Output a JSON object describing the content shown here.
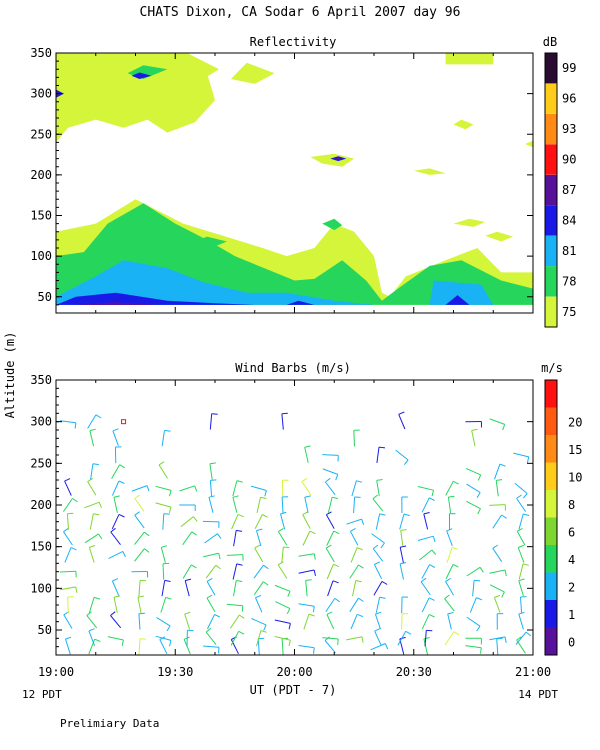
{
  "figure": {
    "title": "CHATS Dixon, CA  Sodar   6 April 2007  day  96",
    "ylabel": "Altitude (m)",
    "xlabel": "UT  (PDT - 7)",
    "left_time_note": "12 PDT",
    "right_time_note": "14 PDT",
    "footer": "Prelimiary Data"
  },
  "chart_data": [
    {
      "type": "heatmap",
      "title": "Reflectivity",
      "colorbar_unit": "dB",
      "x_ticks": [
        "19:00",
        "19:30",
        "20:00",
        "20:30",
        "21:00"
      ],
      "xlim": [
        "19:00",
        "21:00"
      ],
      "ylim": [
        30,
        350
      ],
      "y_ticks": [
        50,
        100,
        150,
        200,
        250,
        300,
        350
      ],
      "levels": [
        75,
        78,
        81,
        84,
        87,
        90,
        93,
        96,
        99
      ],
      "level_colors": [
        "#d4f53a",
        "#26d65c",
        "#19b2f5",
        "#1a1ae6",
        "#58119a",
        "#ff1111",
        "#ff8a16",
        "#ffcc1a",
        "#2a0c33"
      ],
      "regions": [
        {
          "level": 75,
          "points": [
            [
              "19:00",
              40
            ],
            [
              "19:00",
              130
            ],
            [
              "19:10",
              140
            ],
            [
              "19:20",
              170
            ],
            [
              "19:32",
              140
            ],
            [
              "19:42",
              125
            ],
            [
              "19:52",
              110
            ],
            [
              "19:58",
              100
            ],
            [
              "20:05",
              110
            ],
            [
              "20:10",
              140
            ],
            [
              "20:15",
              130
            ],
            [
              "20:20",
              100
            ],
            [
              "20:22",
              55
            ],
            [
              "20:24",
              50
            ],
            [
              "20:28",
              75
            ],
            [
              "20:38",
              95
            ],
            [
              "20:46",
              110
            ],
            [
              "20:52",
              80
            ],
            [
              "21:00",
              80
            ],
            [
              "21:00",
              40
            ]
          ]
        },
        {
          "level": 75,
          "points": [
            [
              "19:00",
              350
            ],
            [
              "19:00",
              240
            ],
            [
              "19:03",
              258
            ],
            [
              "19:10",
              268
            ],
            [
              "19:17",
              258
            ],
            [
              "19:23",
              268
            ],
            [
              "19:28",
              252
            ],
            [
              "19:35",
              265
            ],
            [
              "19:40",
              292
            ],
            [
              "19:38",
              325
            ],
            [
              "19:33",
              350
            ]
          ]
        },
        {
          "level": 75,
          "points": [
            [
              "19:33",
              350
            ],
            [
              "19:37",
              340
            ],
            [
              "19:41",
              330
            ],
            [
              "19:37",
              318
            ]
          ]
        },
        {
          "level": 75,
          "points": [
            [
              "19:48",
              338
            ],
            [
              "19:55",
              325
            ],
            [
              "19:50",
              312
            ],
            [
              "19:44",
              318
            ]
          ]
        },
        {
          "level": 75,
          "points": [
            [
              "20:38",
              350
            ],
            [
              "20:38",
              336
            ],
            [
              "20:50",
              336
            ],
            [
              "20:50",
              350
            ]
          ]
        },
        {
          "level": 75,
          "points": [
            [
              "20:04",
              222
            ],
            [
              "20:07",
              214
            ],
            [
              "20:12",
              210
            ],
            [
              "20:15",
              220
            ],
            [
              "20:10",
              226
            ]
          ]
        },
        {
          "level": 75,
          "points": [
            [
              "20:30",
              205
            ],
            [
              "20:34",
              200
            ],
            [
              "20:38",
              202
            ],
            [
              "20:34",
              208
            ]
          ]
        },
        {
          "level": 75,
          "points": [
            [
              "20:40",
              262
            ],
            [
              "20:43",
              256
            ],
            [
              "20:45",
              262
            ],
            [
              "20:42",
              268
            ]
          ]
        },
        {
          "level": 75,
          "points": [
            [
              "20:40",
              140
            ],
            [
              "20:45",
              136
            ],
            [
              "20:48",
              142
            ],
            [
              "20:44",
              146
            ]
          ]
        },
        {
          "level": 75,
          "points": [
            [
              "20:48",
              125
            ],
            [
              "20:52",
              118
            ],
            [
              "20:55",
              124
            ],
            [
              "20:51",
              130
            ]
          ]
        },
        {
          "level": 75,
          "points": [
            [
              "20:58",
              238
            ],
            [
              "21:00",
              234
            ],
            [
              "21:00",
              242
            ]
          ]
        },
        {
          "level": 78,
          "points": [
            [
              "19:00",
              40
            ],
            [
              "19:00",
              100
            ],
            [
              "19:07",
              105
            ],
            [
              "19:13",
              140
            ],
            [
              "19:22",
              165
            ],
            [
              "19:30",
              140
            ],
            [
              "19:38",
              120
            ],
            [
              "19:45",
              100
            ],
            [
              "19:55",
              80
            ],
            [
              "20:00",
              70
            ],
            [
              "20:05",
              72
            ],
            [
              "20:12",
              95
            ],
            [
              "20:18",
              70
            ],
            [
              "20:22",
              45
            ],
            [
              "20:26",
              60
            ],
            [
              "20:34",
              88
            ],
            [
              "20:42",
              95
            ],
            [
              "20:52",
              70
            ],
            [
              "21:00",
              60
            ],
            [
              "21:00",
              40
            ]
          ]
        },
        {
          "level": 78,
          "points": [
            [
              "19:18",
              325
            ],
            [
              "19:22",
              335
            ],
            [
              "19:28",
              330
            ],
            [
              "19:22",
              318
            ]
          ]
        },
        {
          "level": 78,
          "points": [
            [
              "20:07",
              140
            ],
            [
              "20:10",
              132
            ],
            [
              "20:12",
              138
            ],
            [
              "20:10",
              146
            ]
          ]
        },
        {
          "level": 78,
          "points": [
            [
              "19:35",
              118
            ],
            [
              "19:40",
              112
            ],
            [
              "19:43",
              118
            ],
            [
              "19:38",
              124
            ]
          ]
        },
        {
          "level": 81,
          "points": [
            [
              "19:00",
              40
            ],
            [
              "19:00",
              50
            ],
            [
              "19:10",
              75
            ],
            [
              "19:17",
              95
            ],
            [
              "19:28",
              85
            ],
            [
              "19:37",
              68
            ],
            [
              "19:48",
              55
            ],
            [
              "19:58",
              55
            ],
            [
              "20:10",
              45
            ],
            [
              "20:20",
              40
            ]
          ]
        },
        {
          "level": 81,
          "points": [
            [
              "20:34",
              40
            ],
            [
              "20:35",
              70
            ],
            [
              "20:47",
              65
            ],
            [
              "20:50",
              40
            ]
          ]
        },
        {
          "level": 84,
          "points": [
            [
              "19:00",
              40
            ],
            [
              "19:05",
              50
            ],
            [
              "19:15",
              55
            ],
            [
              "19:28",
              45
            ],
            [
              "19:40",
              42
            ],
            [
              "19:50",
              40
            ]
          ]
        },
        {
          "level": 84,
          "points": [
            [
              "19:58",
              40
            ],
            [
              "20:01",
              45
            ],
            [
              "20:05",
              40
            ]
          ]
        },
        {
          "level": 84,
          "points": [
            [
              "20:38",
              40
            ],
            [
              "20:41",
              52
            ],
            [
              "20:44",
              40
            ]
          ]
        },
        {
          "level": 84,
          "points": [
            [
              "19:00",
              295
            ],
            [
              "19:02",
              300
            ],
            [
              "19:00",
              305
            ]
          ]
        },
        {
          "level": 84,
          "points": [
            [
              "19:19",
              322
            ],
            [
              "19:21",
              326
            ],
            [
              "19:24",
              322
            ],
            [
              "19:21",
              318
            ]
          ]
        },
        {
          "level": 84,
          "points": [
            [
              "20:09",
              220
            ],
            [
              "20:11",
              223
            ],
            [
              "20:13",
              220
            ],
            [
              "20:11",
              217
            ]
          ]
        },
        {
          "level": 87,
          "points": [
            [
              "19:00",
              297
            ],
            [
              "19:01",
              300
            ],
            [
              "19:00",
              303
            ]
          ]
        },
        {
          "level": 87,
          "points": [
            [
              "20:10",
              220
            ],
            [
              "20:11",
              221
            ],
            [
              "20:12",
              220
            ],
            [
              "20:11",
              219
            ]
          ]
        },
        {
          "level": 87,
          "points": [
            [
              "19:05",
              40
            ],
            [
              "19:15",
              43
            ],
            [
              "19:25",
              40
            ]
          ]
        }
      ]
    },
    {
      "type": "scatter",
      "title": "Wind Barbs (m/s)",
      "colorbar_unit": "m/s",
      "x_ticks": [
        "19:00",
        "19:30",
        "20:00",
        "20:30",
        "21:00"
      ],
      "xlim": [
        "19:00",
        "21:00"
      ],
      "ylim": [
        20,
        350
      ],
      "y_ticks": [
        50,
        100,
        150,
        200,
        250,
        300,
        350
      ],
      "speed_levels": [
        0,
        1,
        2,
        4,
        6,
        8,
        10,
        15,
        20
      ],
      "level_colors": [
        "#58119a",
        "#1a1ae6",
        "#19b2f5",
        "#26d65c",
        "#7ed630",
        "#d4f53a",
        "#ffcc1a",
        "#ff8a16",
        "#ff5a12",
        "#ff1111"
      ],
      "columns": [
        "19:03",
        "19:09",
        "19:15",
        "19:21",
        "19:27",
        "19:33",
        "19:39",
        "19:45",
        "19:51",
        "19:57",
        "20:03",
        "20:09",
        "20:15",
        "20:21",
        "20:27",
        "20:33",
        "20:39",
        "20:45",
        "20:51",
        "20:57"
      ],
      "altitudes": [
        30,
        40,
        60,
        80,
        100,
        120,
        140,
        160,
        180,
        200,
        220,
        240,
        260,
        280,
        300
      ]
    }
  ]
}
